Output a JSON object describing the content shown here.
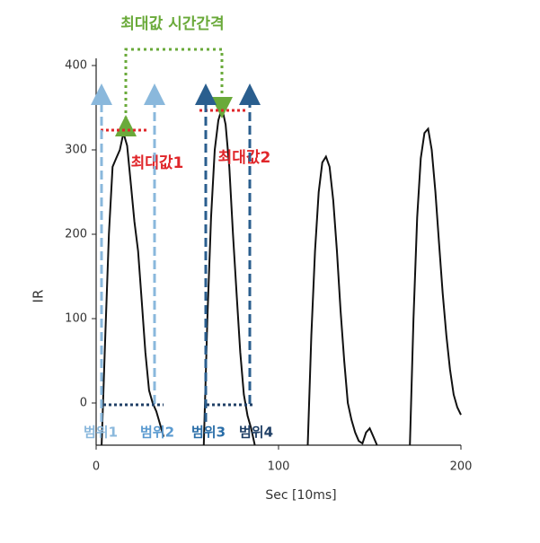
{
  "chart_data": {
    "type": "line",
    "x_label": "Sec [10ms]",
    "y_label": "IR",
    "xlim": [
      0,
      200
    ],
    "ylim": [
      -50,
      400
    ],
    "xticks": [
      0,
      100,
      200
    ],
    "yticks": [
      0,
      100,
      200,
      300,
      400
    ],
    "x": [
      3,
      5,
      7,
      9,
      11,
      13,
      15,
      17,
      19,
      21,
      23,
      25,
      27,
      29,
      31,
      33,
      35,
      37,
      45,
      59,
      61,
      63,
      65,
      67,
      69,
      71,
      73,
      75,
      77,
      79,
      81,
      83,
      85,
      87,
      100,
      116,
      118,
      120,
      122,
      124,
      126,
      128,
      130,
      132,
      134,
      136,
      138,
      140,
      142,
      144,
      146,
      148,
      150,
      152,
      154,
      163,
      172,
      174,
      176,
      178,
      180,
      182,
      184,
      186,
      188,
      190,
      192,
      194,
      196,
      198,
      200
    ],
    "series": [
      {
        "color": "#111111",
        "values": [
          -50,
          80,
          200,
          280,
          290,
          300,
          320,
          305,
          260,
          215,
          180,
          120,
          60,
          15,
          0,
          -10,
          -25,
          -40,
          null,
          -50,
          100,
          220,
          300,
          335,
          350,
          330,
          280,
          200,
          130,
          60,
          10,
          -15,
          -30,
          -50,
          null,
          -50,
          80,
          180,
          250,
          285,
          292,
          280,
          240,
          180,
          110,
          50,
          0,
          -20,
          -35,
          -45,
          -48,
          -35,
          -30,
          -40,
          -50,
          null,
          -50,
          100,
          220,
          290,
          320,
          325,
          300,
          250,
          190,
          130,
          80,
          40,
          10,
          -5,
          -14
        ]
      }
    ],
    "annotations": {
      "interval": "최대값 시간간격",
      "max1": "최대값1",
      "max2": "최대값2",
      "range1": "범위1",
      "range2": "범위2",
      "range3": "범위3",
      "range4": "범위4"
    }
  }
}
